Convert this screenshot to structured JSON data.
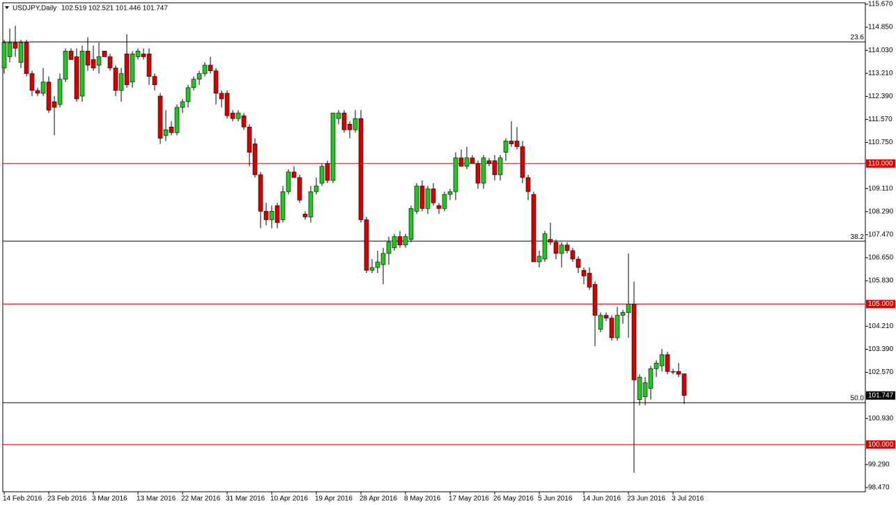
{
  "chart_data": {
    "type": "candlestick",
    "title": "USDJPY,Daily",
    "ohlc_text": "102.519 102.521 101.446 101.747",
    "categories": [
      "14 Feb 2016",
      null,
      null,
      null,
      null,
      null,
      null,
      null,
      "23 Feb 2016",
      null,
      null,
      null,
      null,
      null,
      null,
      null,
      "3 Mar 2016",
      null,
      null,
      null,
      null,
      null,
      null,
      null,
      "13 Mar 2016",
      null,
      null,
      null,
      null,
      null,
      null,
      null,
      "22 Mar 2016",
      null,
      null,
      null,
      null,
      null,
      null,
      null,
      "31 Mar 2016",
      null,
      null,
      null,
      null,
      null,
      null,
      null,
      "10 Apr 2016",
      null,
      null,
      null,
      null,
      null,
      null,
      null,
      "19 Apr 2016",
      null,
      null,
      null,
      null,
      null,
      null,
      null,
      "28 Apr 2016",
      null,
      null,
      null,
      null,
      null,
      null,
      null,
      "8 May 2016",
      null,
      null,
      null,
      null,
      null,
      null,
      null,
      "17 May 2016",
      null,
      null,
      null,
      null,
      null,
      null,
      null,
      "26 May 2016",
      null,
      null,
      null,
      null,
      null,
      null,
      null,
      "5 Jun 2016",
      null,
      null,
      null,
      null,
      null,
      null,
      null,
      "14 Jun 2016",
      null,
      null,
      null,
      null,
      null,
      null,
      null,
      "23 Jun 2016",
      null,
      null,
      null,
      null,
      null,
      null,
      null,
      "3 Jul 2016",
      null,
      null
    ],
    "open": [
      113.4,
      113.8,
      114.3,
      113.6,
      114.3,
      113.2,
      112.6,
      112.5,
      112.9,
      112.2,
      112.1,
      113.0,
      114.0,
      113.8,
      112.4,
      114.0,
      113.7,
      113.5,
      114.0,
      113.8,
      113.4,
      112.6,
      113.9,
      112.9,
      113.8,
      113.9,
      113.9,
      113.1,
      112.4,
      111.0,
      111.3,
      111.1,
      112.0,
      112.2,
      112.7,
      113.0,
      113.2,
      113.5,
      113.3,
      112.5,
      112.5,
      111.8,
      111.6,
      111.7,
      111.3,
      110.7,
      109.6,
      108.3,
      108.0,
      108.5,
      108.0,
      109.0,
      109.7,
      109.5,
      108.2,
      108.1,
      109.0,
      109.3,
      110.0,
      109.4,
      111.6,
      111.8,
      111.4,
      111.2,
      111.6,
      108.0,
      106.2,
      106.3,
      106.4,
      106.8,
      107.0,
      107.4,
      107.1,
      107.3,
      108.3,
      109.2,
      108.4,
      109.1,
      108.5,
      108.4,
      108.9,
      109.0,
      110.2,
      109.9,
      110.2,
      110.0,
      109.3,
      110.1,
      110.1,
      109.6,
      110.4,
      110.8,
      110.8,
      110.6,
      109.5,
      108.9,
      106.5,
      106.6,
      107.3,
      107.2,
      106.8,
      107.1,
      106.9,
      106.6,
      106.2,
      106.1,
      105.7,
      104.1,
      104.6,
      104.5,
      103.8,
      104.6,
      104.7,
      105.0,
      101.6,
      101.7,
      102.0,
      102.7,
      102.8,
      103.2,
      102.6,
      102.6,
      102.519
    ],
    "high": [
      114.4,
      114.8,
      114.9,
      114.4,
      114.4,
      113.3,
      112.7,
      113.4,
      113.1,
      112.4,
      113.2,
      114.1,
      114.1,
      114.1,
      114.2,
      114.5,
      114.2,
      114.3,
      114.0,
      113.9,
      113.5,
      113.4,
      114.6,
      114.0,
      114.1,
      114.1,
      114.1,
      113.2,
      112.5,
      111.9,
      111.5,
      112.1,
      112.3,
      112.8,
      113.1,
      113.3,
      113.6,
      113.8,
      113.4,
      112.6,
      112.6,
      111.9,
      111.9,
      111.8,
      111.4,
      110.9,
      109.7,
      108.6,
      108.5,
      108.6,
      109.2,
      109.8,
      109.9,
      109.6,
      108.3,
      109.2,
      109.5,
      110.0,
      110.1,
      111.8,
      111.9,
      111.9,
      111.5,
      111.9,
      111.9,
      108.1,
      106.6,
      106.9,
      107.0,
      107.4,
      107.5,
      107.6,
      107.5,
      108.5,
      109.3,
      109.4,
      109.2,
      109.3,
      108.6,
      109.0,
      109.1,
      110.4,
      110.5,
      110.6,
      110.3,
      110.1,
      110.3,
      110.2,
      110.3,
      110.3,
      110.9,
      111.5,
      111.3,
      110.8,
      109.6,
      109.0,
      106.9,
      107.6,
      107.9,
      107.3,
      107.2,
      107.2,
      107.0,
      106.7,
      106.3,
      106.3,
      105.8,
      104.7,
      104.7,
      104.6,
      104.9,
      104.8,
      106.8,
      105.8,
      102.5,
      102.4,
      102.8,
      103.0,
      103.4,
      103.3,
      102.7,
      102.9,
      102.521
    ],
    "low": [
      113.2,
      113.6,
      113.8,
      113.4,
      113.1,
      112.4,
      112.4,
      112.4,
      111.8,
      111.0,
      112.0,
      112.9,
      113.7,
      112.2,
      112.2,
      113.3,
      113.3,
      113.2,
      113.8,
      113.3,
      112.4,
      112.2,
      112.7,
      112.7,
      113.7,
      113.7,
      112.8,
      112.6,
      110.7,
      110.8,
      111.0,
      111.0,
      111.8,
      112.0,
      112.6,
      112.8,
      113.1,
      113.2,
      112.1,
      112.0,
      111.6,
      111.5,
      111.5,
      111.2,
      109.9,
      109.5,
      107.7,
      107.8,
      107.7,
      107.7,
      107.9,
      108.9,
      109.5,
      108.6,
      108.0,
      107.9,
      108.9,
      109.2,
      109.3,
      109.3,
      111.4,
      111.1,
      110.9,
      111.1,
      107.9,
      106.1,
      106.1,
      106.1,
      105.7,
      106.4,
      106.9,
      107.0,
      107.0,
      107.2,
      108.2,
      108.3,
      108.2,
      108.5,
      108.2,
      108.3,
      108.7,
      108.7,
      109.9,
      109.8,
      110.0,
      109.1,
      109.1,
      109.9,
      109.4,
      109.4,
      110.1,
      110.6,
      110.5,
      109.3,
      108.7,
      106.5,
      106.3,
      106.5,
      107.1,
      106.6,
      106.3,
      106.8,
      106.5,
      106.1,
      105.7,
      105.5,
      103.5,
      104.0,
      104.4,
      103.7,
      103.7,
      104.3,
      103.8,
      99.0,
      101.4,
      101.4,
      101.6,
      102.4,
      102.6,
      102.5,
      102.5,
      102.4,
      101.446
    ],
    "close": [
      114.3,
      114.3,
      114.1,
      114.3,
      113.2,
      112.6,
      112.5,
      112.9,
      111.9,
      112.0,
      113.0,
      114.0,
      113.7,
      112.3,
      114.0,
      113.5,
      113.4,
      113.8,
      113.8,
      113.4,
      112.6,
      113.2,
      112.8,
      113.9,
      114.0,
      113.8,
      113.1,
      112.8,
      110.9,
      111.2,
      111.1,
      112.0,
      112.2,
      112.7,
      113.0,
      113.2,
      113.5,
      113.3,
      112.5,
      112.3,
      111.7,
      111.6,
      111.8,
      111.3,
      110.4,
      109.6,
      108.3,
      108.0,
      108.3,
      107.9,
      109.0,
      109.7,
      109.5,
      108.7,
      108.1,
      109.0,
      109.2,
      109.9,
      109.4,
      111.8,
      111.8,
      111.2,
      111.2,
      111.6,
      108.0,
      106.2,
      106.3,
      106.5,
      106.8,
      107.2,
      107.4,
      107.1,
      107.4,
      108.4,
      109.2,
      108.4,
      109.1,
      108.6,
      108.4,
      108.9,
      109.0,
      110.2,
      109.9,
      110.2,
      110.0,
      109.3,
      110.2,
      110.0,
      109.6,
      110.2,
      110.8,
      110.7,
      110.6,
      109.5,
      109.0,
      106.5,
      106.7,
      107.5,
      107.2,
      106.8,
      107.1,
      106.9,
      106.6,
      106.3,
      106.0,
      105.6,
      104.6,
      104.6,
      104.5,
      103.8,
      104.6,
      104.7,
      105.0,
      102.3,
      102.4,
      102.2,
      102.7,
      102.9,
      103.2,
      102.6,
      102.6,
      102.5,
      101.747
    ],
    "up_color": "#22c322",
    "down_color": "#d40000",
    "ylim": [
      98.32,
      115.72
    ],
    "yticks": [
      {
        "value": 115.67,
        "label": "115.670"
      },
      {
        "value": 114.85,
        "label": "114.850"
      },
      {
        "value": 114.03,
        "label": "114.030"
      },
      {
        "value": 113.21,
        "label": "113.210"
      },
      {
        "value": 112.39,
        "label": "112.390"
      },
      {
        "value": 111.57,
        "label": "111.570"
      },
      {
        "value": 110.75,
        "label": "110.750"
      },
      {
        "value": 109.11,
        "label": "109.110"
      },
      {
        "value": 108.29,
        "label": "108.290"
      },
      {
        "value": 107.47,
        "label": "107.470"
      },
      {
        "value": 106.65,
        "label": "106.650"
      },
      {
        "value": 105.83,
        "label": "105.830"
      },
      {
        "value": 104.21,
        "label": "104.210"
      },
      {
        "value": 103.39,
        "label": "103.390"
      },
      {
        "value": 102.57,
        "label": "102.570"
      },
      {
        "value": 100.93,
        "label": "100.930"
      },
      {
        "value": 99.29,
        "label": "99.290"
      },
      {
        "value": 98.47,
        "label": "98.470"
      }
    ],
    "levels": [
      {
        "value": 110,
        "label": "110.000"
      },
      {
        "value": 105,
        "label": "105.000"
      },
      {
        "value": 100,
        "label": "100.000"
      }
    ],
    "level_color": "#e00000",
    "fib_levels": [
      {
        "label": "23.6",
        "price": 114.33
      },
      {
        "label": "38.2",
        "price": 107.24
      },
      {
        "label": "50.0",
        "price": 101.49
      }
    ],
    "last_price": 101.747
  }
}
